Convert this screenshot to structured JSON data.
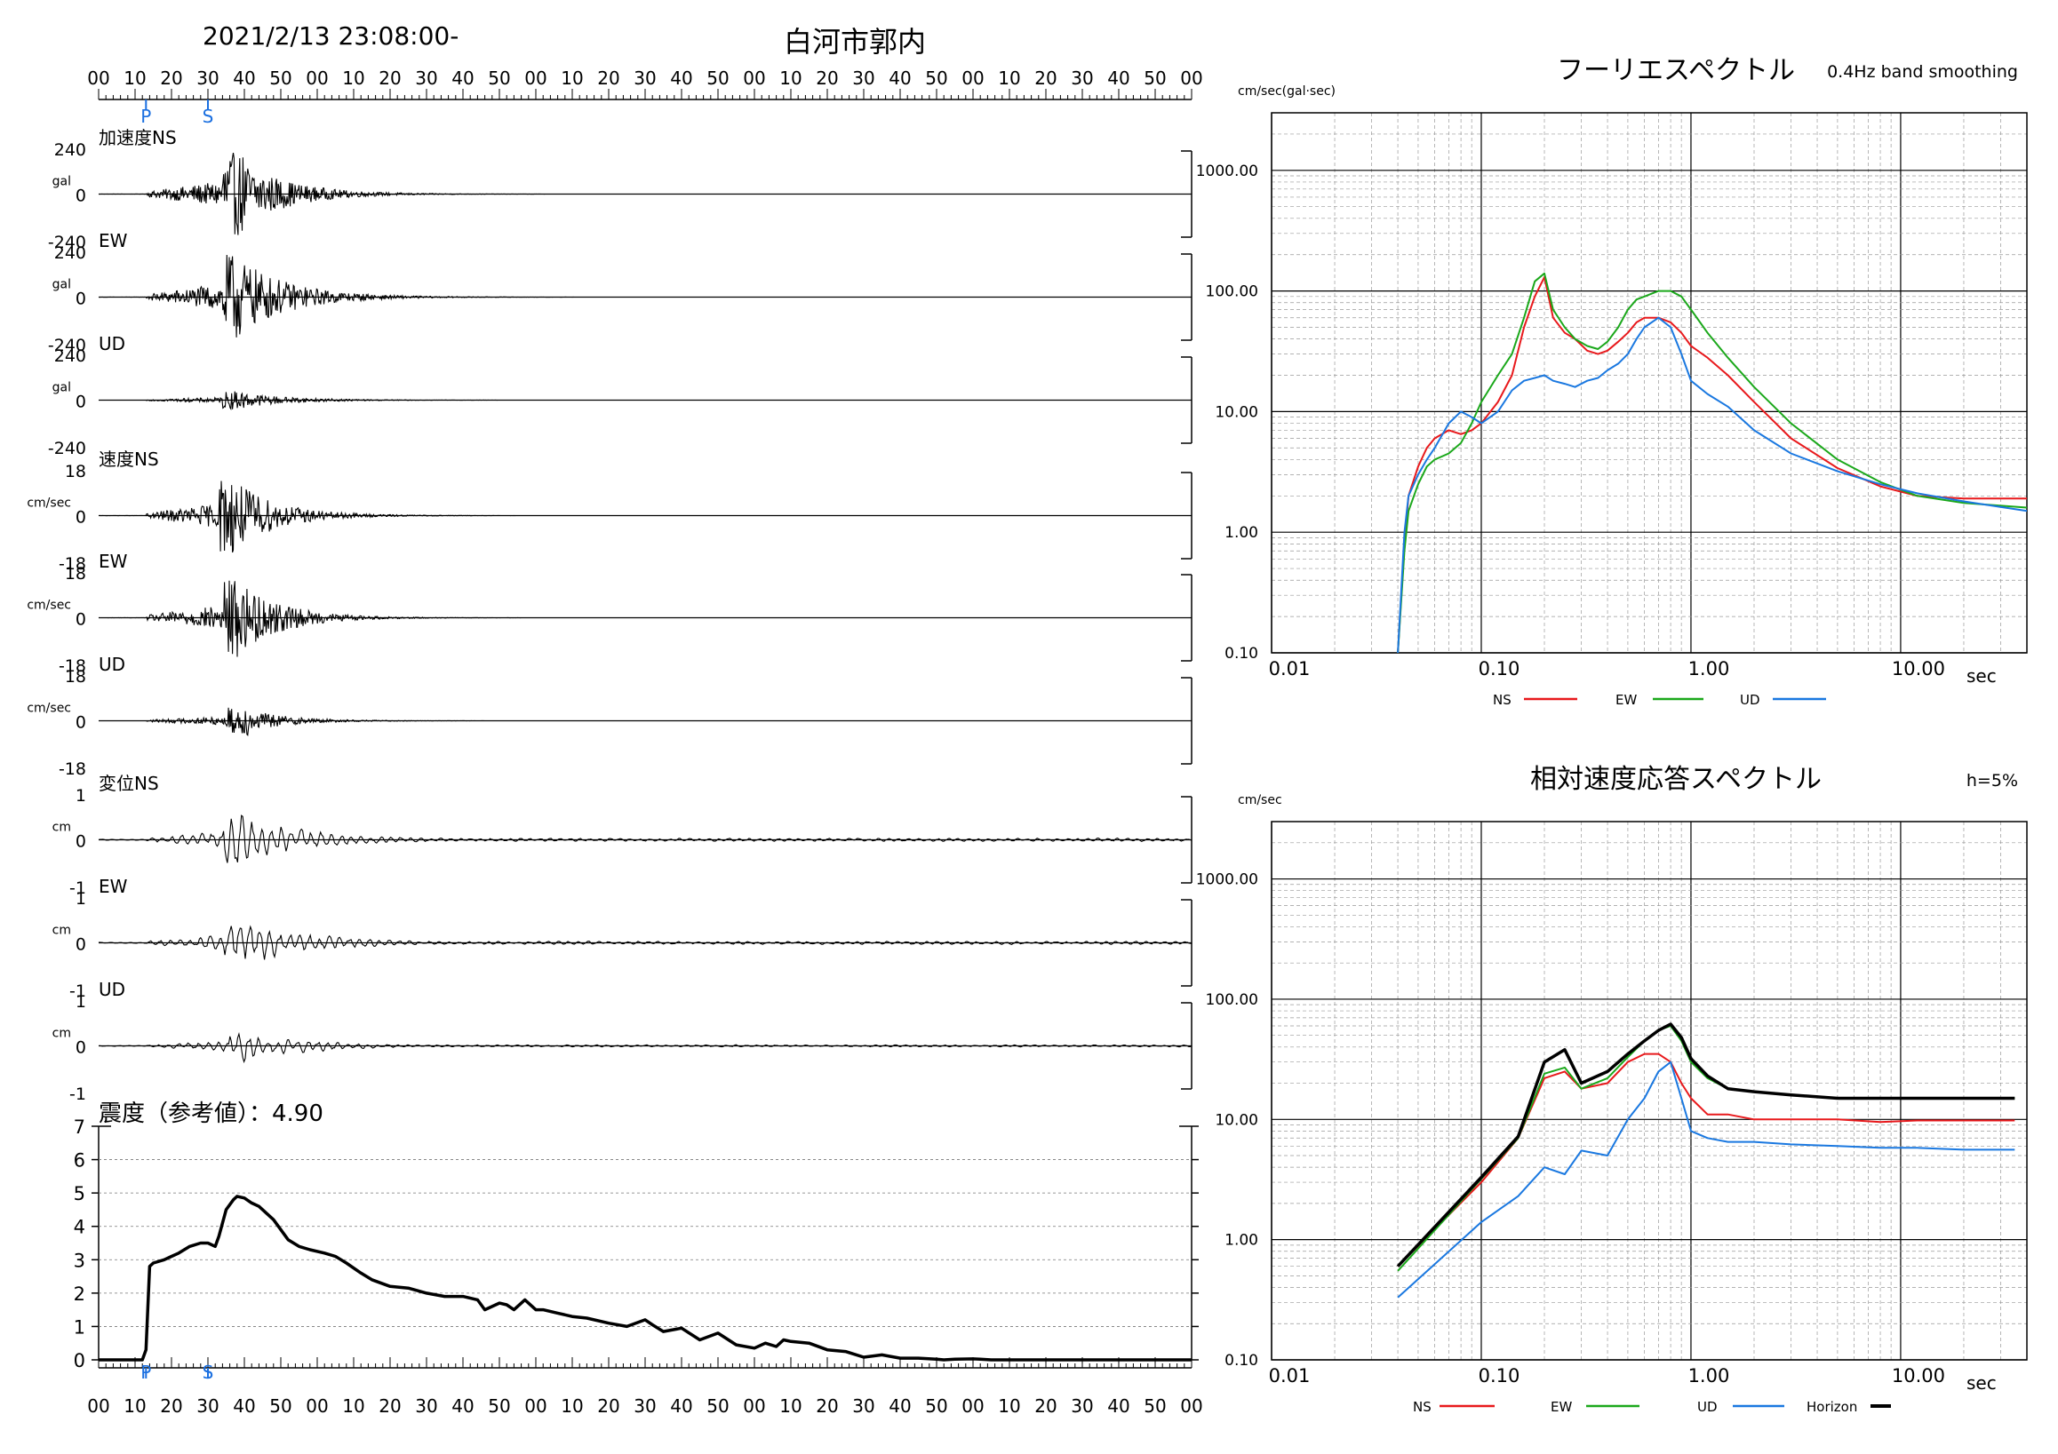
{
  "header": {
    "datetime": "2021/2/13 23:08:00-",
    "station": "白河市郭内"
  },
  "chart_data": [
    {
      "id": "waveforms",
      "type": "line",
      "time_ticks": [
        "00",
        "10",
        "20",
        "30",
        "40",
        "50",
        "00",
        "10",
        "20",
        "30",
        "40",
        "50",
        "00",
        "10",
        "20",
        "30",
        "40",
        "50",
        "00",
        "10",
        "20",
        "30",
        "40",
        "50",
        "00",
        "10",
        "20",
        "30",
        "40",
        "50",
        "00"
      ],
      "markers": [
        {
          "label": "P",
          "t": 13
        },
        {
          "label": "S",
          "t": 30
        }
      ],
      "marker_color": "#1a6fe0",
      "panels": [
        {
          "name": "加速度NS",
          "unit": "gal",
          "ymax_label": "240",
          "zero_label": "0",
          "ymin_label": "-240",
          "amp": 1.0,
          "peak_t": 37,
          "decay": 13
        },
        {
          "name": "EW",
          "unit": "gal",
          "ymax_label": "240",
          "zero_label": "0",
          "ymin_label": "-240",
          "amp": 1.05,
          "peak_t": 37,
          "decay": 14
        },
        {
          "name": "UD",
          "unit": "gal",
          "ymax_label": "240",
          "zero_label": "0",
          "ymin_label": "-240",
          "amp": 0.22,
          "peak_t": 37,
          "decay": 14
        },
        {
          "name": "速度NS",
          "unit": "cm/sec",
          "ymax_label": "18",
          "zero_label": "0",
          "ymin_label": "-18",
          "amp": 0.95,
          "peak_t": 36,
          "decay": 12
        },
        {
          "name": "EW",
          "unit": "cm/sec",
          "ymax_label": "18",
          "zero_label": "0",
          "ymin_label": "-18",
          "amp": 1.0,
          "peak_t": 37,
          "decay": 12
        },
        {
          "name": "UD",
          "unit": "cm/sec",
          "ymax_label": "18",
          "zero_label": "0",
          "ymin_label": "-18",
          "amp": 0.35,
          "peak_t": 38,
          "decay": 12
        },
        {
          "name": "変位NS",
          "unit": "cm",
          "ymax_label": "1",
          "zero_label": "0",
          "ymin_label": "-1",
          "amp": 1.0,
          "peak_t": 37,
          "decay": 20
        },
        {
          "name": "EW",
          "unit": "cm",
          "ymax_label": "1",
          "zero_label": "0",
          "ymin_label": "-1",
          "amp": 1.0,
          "peak_t": 37,
          "decay": 20
        },
        {
          "name": "UD",
          "unit": "cm",
          "ymax_label": "1",
          "zero_label": "0",
          "ymin_label": "-1",
          "amp": 0.65,
          "peak_t": 39,
          "decay": 18
        }
      ]
    },
    {
      "id": "intensity",
      "type": "line",
      "title": "震度（参考値）：4.90",
      "ylim": [
        0,
        7
      ],
      "y_ticks": [
        "0",
        "1",
        "2",
        "3",
        "4",
        "5",
        "6",
        "7"
      ],
      "x": [
        0,
        12,
        13,
        14,
        15,
        18,
        20,
        22,
        25,
        28,
        30,
        32,
        33,
        35,
        37,
        38,
        40,
        42,
        44,
        48,
        52,
        55,
        58,
        62,
        65,
        68,
        72,
        75,
        80,
        85,
        90,
        95,
        100,
        104,
        106,
        108,
        110,
        112,
        114,
        117,
        120,
        122,
        126,
        130,
        134,
        140,
        145,
        150,
        152,
        155,
        160,
        165,
        170,
        175,
        180,
        183,
        186,
        188,
        190,
        195,
        200,
        205,
        210,
        215,
        220,
        225,
        230,
        232,
        235,
        240,
        242,
        245,
        250,
        300
      ],
      "y": [
        0,
        0,
        0.3,
        2.8,
        2.9,
        3.0,
        3.1,
        3.2,
        3.4,
        3.5,
        3.5,
        3.4,
        3.7,
        4.5,
        4.8,
        4.9,
        4.85,
        4.7,
        4.6,
        4.2,
        3.6,
        3.4,
        3.3,
        3.2,
        3.1,
        2.9,
        2.6,
        2.4,
        2.2,
        2.15,
        2.0,
        1.9,
        1.9,
        1.8,
        1.5,
        1.6,
        1.7,
        1.65,
        1.5,
        1.8,
        1.5,
        1.5,
        1.4,
        1.3,
        1.25,
        1.1,
        1.0,
        1.2,
        1.05,
        0.85,
        0.95,
        0.6,
        0.8,
        0.45,
        0.35,
        0.5,
        0.4,
        0.6,
        0.55,
        0.5,
        0.3,
        0.25,
        0.08,
        0.15,
        0.05,
        0.05,
        0.02,
        0.0,
        0.02,
        0.03,
        0.02,
        0.0,
        0.0,
        0.0
      ]
    },
    {
      "id": "fourier",
      "type": "line",
      "title": "フーリエスペクトル",
      "subtitle": "0.4Hz band smoothing",
      "ylabel": "cm/sec(gal·sec)",
      "xlabel": "sec",
      "x_log": true,
      "y_log": true,
      "xlim": [
        0.01,
        40
      ],
      "ylim": [
        0.1,
        3000
      ],
      "x_ticks": [
        "0.01",
        "0.10",
        "1.00",
        "10.00"
      ],
      "y_ticks": [
        "0.10",
        "1.00",
        "10.00",
        "100.00",
        "1000.00"
      ],
      "series": [
        {
          "name": "NS",
          "color": "#e8191c",
          "x": [
            0.04,
            0.043,
            0.045,
            0.05,
            0.055,
            0.06,
            0.07,
            0.08,
            0.09,
            0.1,
            0.12,
            0.14,
            0.16,
            0.18,
            0.2,
            0.22,
            0.25,
            0.28,
            0.32,
            0.36,
            0.4,
            0.45,
            0.5,
            0.55,
            0.6,
            0.7,
            0.8,
            0.9,
            1.0,
            1.2,
            1.5,
            2.0,
            3.0,
            5.0,
            8.0,
            12.0,
            20.0,
            40.0
          ],
          "y": [
            0.1,
            0.8,
            2.0,
            3.5,
            5.0,
            6.0,
            7.0,
            6.5,
            7.0,
            8.0,
            12,
            20,
            50,
            90,
            130,
            60,
            45,
            40,
            32,
            30,
            32,
            38,
            45,
            55,
            60,
            60,
            55,
            45,
            35,
            28,
            20,
            12,
            6,
            3.4,
            2.4,
            2.0,
            1.9,
            1.9
          ]
        },
        {
          "name": "EW",
          "color": "#1ba81b",
          "x": [
            0.04,
            0.043,
            0.045,
            0.05,
            0.055,
            0.06,
            0.07,
            0.08,
            0.09,
            0.1,
            0.12,
            0.14,
            0.16,
            0.18,
            0.2,
            0.22,
            0.25,
            0.28,
            0.32,
            0.36,
            0.4,
            0.45,
            0.5,
            0.55,
            0.6,
            0.7,
            0.8,
            0.9,
            1.0,
            1.2,
            1.5,
            2.0,
            3.0,
            5.0,
            8.0,
            12.0,
            20.0,
            40.0
          ],
          "y": [
            0.1,
            0.7,
            1.5,
            2.5,
            3.5,
            4.0,
            4.5,
            5.5,
            8.0,
            12,
            20,
            30,
            60,
            120,
            140,
            70,
            50,
            40,
            35,
            33,
            38,
            50,
            70,
            85,
            90,
            100,
            100,
            90,
            70,
            45,
            28,
            16,
            8,
            4,
            2.6,
            2.0,
            1.75,
            1.6
          ]
        },
        {
          "name": "UD",
          "color": "#1a78e0",
          "x": [
            0.04,
            0.043,
            0.045,
            0.05,
            0.055,
            0.06,
            0.07,
            0.08,
            0.09,
            0.1,
            0.12,
            0.14,
            0.16,
            0.18,
            0.2,
            0.22,
            0.25,
            0.28,
            0.32,
            0.36,
            0.4,
            0.45,
            0.5,
            0.55,
            0.6,
            0.7,
            0.8,
            0.9,
            1.0,
            1.2,
            1.5,
            2.0,
            3.0,
            5.0,
            8.0,
            12.0,
            20.0,
            40.0
          ],
          "y": [
            0.1,
            1.0,
            2.0,
            3.0,
            4.0,
            5.0,
            8.0,
            10,
            9.0,
            8.0,
            10,
            15,
            18,
            19,
            20,
            18,
            17,
            16,
            18,
            19,
            22,
            25,
            30,
            40,
            50,
            60,
            50,
            30,
            18,
            14,
            11,
            7,
            4.5,
            3.2,
            2.5,
            2.1,
            1.8,
            1.5
          ]
        }
      ]
    },
    {
      "id": "response",
      "type": "line",
      "title": "相対速度応答スペクトル",
      "subtitle": "h=5%",
      "ylabel": "cm/sec",
      "xlabel": "sec",
      "x_log": true,
      "y_log": true,
      "xlim": [
        0.01,
        40
      ],
      "ylim": [
        0.1,
        3000
      ],
      "x_ticks": [
        "0.01",
        "0.10",
        "1.00",
        "10.00"
      ],
      "y_ticks": [
        "0.10",
        "1.00",
        "10.00",
        "100.00",
        "1000.00"
      ],
      "series": [
        {
          "name": "NS",
          "color": "#e8191c",
          "x": [
            0.04,
            0.1,
            0.15,
            0.2,
            0.25,
            0.3,
            0.4,
            0.5,
            0.6,
            0.7,
            0.8,
            0.9,
            1.0,
            1.2,
            1.5,
            2.0,
            3.0,
            5.0,
            8.0,
            12.0,
            20.0,
            35.0
          ],
          "y": [
            0.6,
            3.0,
            7.0,
            22,
            25,
            18,
            20,
            30,
            35,
            35,
            30,
            20,
            15,
            11,
            11,
            10,
            10,
            10,
            9.5,
            9.8,
            9.8,
            9.8
          ]
        },
        {
          "name": "EW",
          "color": "#1ba81b",
          "x": [
            0.04,
            0.1,
            0.15,
            0.2,
            0.25,
            0.3,
            0.4,
            0.5,
            0.6,
            0.7,
            0.8,
            0.9,
            1.0,
            1.2,
            1.5,
            2.0,
            3.0,
            5.0,
            8.0,
            12.0,
            20.0,
            35.0
          ],
          "y": [
            0.55,
            3.2,
            7.0,
            24,
            27,
            18,
            22,
            33,
            45,
            55,
            60,
            45,
            30,
            22,
            18,
            17,
            16,
            15,
            15,
            15,
            15,
            15
          ]
        },
        {
          "name": "UD",
          "color": "#1a78e0",
          "x": [
            0.04,
            0.1,
            0.15,
            0.2,
            0.25,
            0.3,
            0.4,
            0.5,
            0.6,
            0.7,
            0.8,
            0.9,
            1.0,
            1.2,
            1.5,
            2.0,
            3.0,
            5.0,
            8.0,
            12.0,
            20.0,
            35.0
          ],
          "y": [
            0.33,
            1.4,
            2.3,
            4.0,
            3.5,
            5.5,
            5.0,
            10,
            15,
            25,
            30,
            15,
            8.0,
            7.0,
            6.5,
            6.5,
            6.2,
            6.0,
            5.8,
            5.8,
            5.6,
            5.6
          ]
        },
        {
          "name": "Horizon",
          "color": "#000000",
          "x": [
            0.04,
            0.1,
            0.15,
            0.2,
            0.25,
            0.3,
            0.4,
            0.5,
            0.6,
            0.7,
            0.8,
            0.9,
            1.0,
            1.2,
            1.5,
            2.0,
            3.0,
            5.0,
            8.0,
            12.0,
            20.0,
            35.0
          ],
          "y": [
            0.6,
            3.3,
            7.2,
            30,
            38,
            20,
            25,
            35,
            45,
            55,
            62,
            48,
            32,
            23,
            18,
            17,
            16,
            15,
            15,
            15,
            15,
            15
          ]
        }
      ]
    }
  ]
}
